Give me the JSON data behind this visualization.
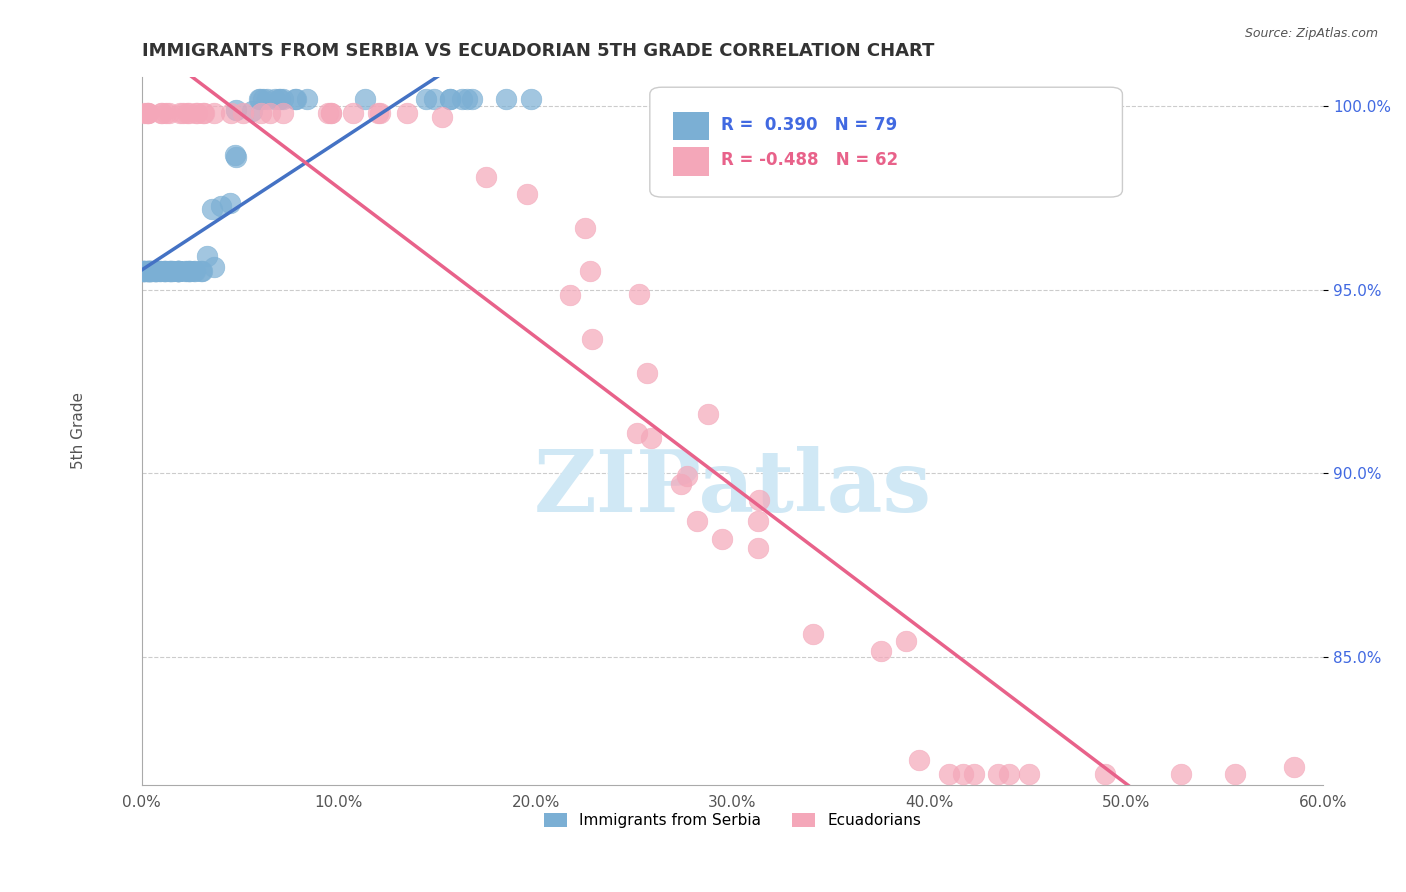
{
  "title": "IMMIGRANTS FROM SERBIA VS ECUADORIAN 5TH GRADE CORRELATION CHART",
  "source_text": "Source: ZipAtlas.com",
  "xlabel": "",
  "ylabel": "5th Grade",
  "watermark": "ZIPatlas",
  "xlim": [
    0.0,
    0.6
  ],
  "ylim": [
    0.815,
    1.008
  ],
  "xticks": [
    0.0,
    0.1,
    0.2,
    0.3,
    0.4,
    0.5,
    0.6
  ],
  "xticklabels": [
    "0.0%",
    "10.0%",
    "20.0%",
    "30.0%",
    "40.0%",
    "50.0%",
    "60.0%"
  ],
  "yticks": [
    0.85,
    0.9,
    0.95,
    1.0
  ],
  "yticklabels": [
    "85.0%",
    "90.0%",
    "95.0%",
    "100.0%"
  ],
  "blue_color": "#7bafd4",
  "pink_color": "#f4a7b9",
  "blue_line_color": "#4472c4",
  "pink_line_color": "#e8628a",
  "legend_blue_label": "R =  0.390   N = 79",
  "legend_pink_label": "R = -0.488   N = 62",
  "legend_series1": "Immigrants from Serbia",
  "legend_series2": "Ecuadorians",
  "blue_r": 0.39,
  "blue_n": 79,
  "pink_r": -0.488,
  "pink_n": 62,
  "grid_color": "#cccccc",
  "background_color": "#ffffff",
  "title_color": "#333333",
  "title_fontsize": 13,
  "axis_label_color": "#555555",
  "watermark_color": "#d0e8f5",
  "blue_seed": 42,
  "pink_seed": 7
}
